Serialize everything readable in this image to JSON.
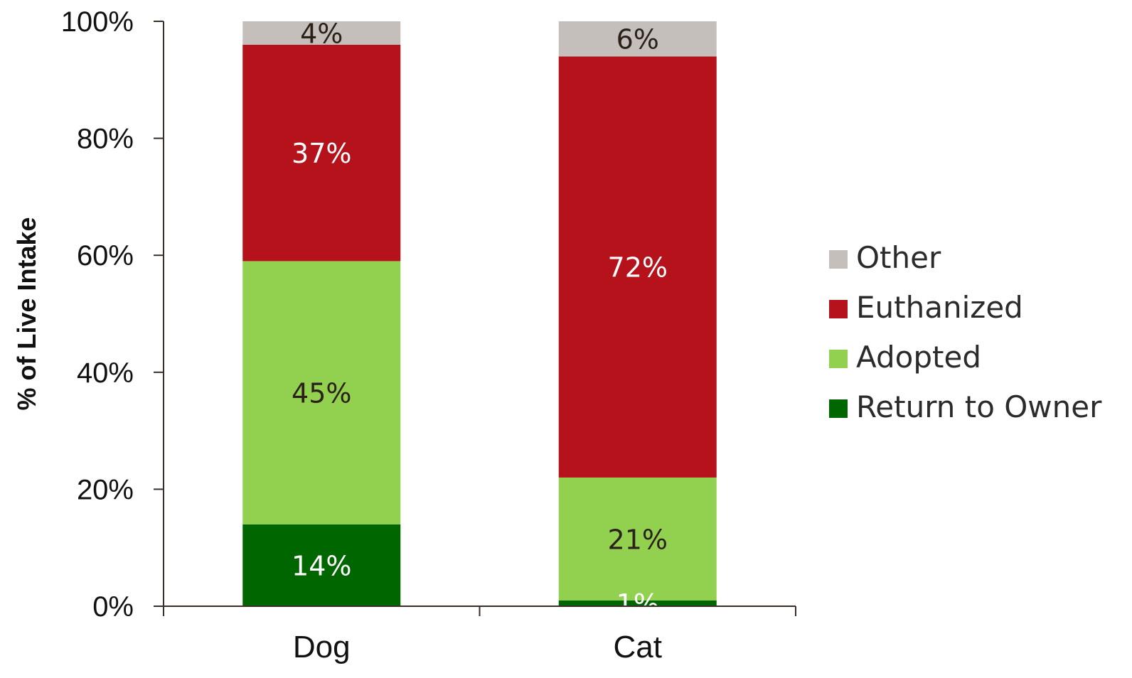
{
  "chart_data": {
    "type": "bar",
    "stacked": true,
    "categories": [
      "Dog",
      "Cat"
    ],
    "ylabel": "% of Live Intake",
    "xlabel": "",
    "ylim": [
      0,
      100
    ],
    "y_ticks": [
      "0%",
      "20%",
      "40%",
      "60%",
      "80%",
      "100%"
    ],
    "y_tick_values": [
      0,
      20,
      40,
      60,
      80,
      100
    ],
    "grid": false,
    "legend_position": "right",
    "series": [
      {
        "name": "Return to Owner",
        "values": [
          14,
          1
        ],
        "labels": [
          "14%",
          "1%"
        ],
        "color": "#006600",
        "label_color": "#ffffff"
      },
      {
        "name": "Adopted",
        "values": [
          45,
          21
        ],
        "labels": [
          "45%",
          "21%"
        ],
        "color": "#92d050",
        "label_color": "#2b2118"
      },
      {
        "name": "Euthanized",
        "values": [
          37,
          72
        ],
        "labels": [
          "37%",
          "72%"
        ],
        "color": "#b5121b",
        "label_color": "#ffffff"
      },
      {
        "name": "Other",
        "values": [
          4,
          6
        ],
        "labels": [
          "4%",
          "6%"
        ],
        "color": "#c4bfbb",
        "label_color": "#2b2118"
      }
    ],
    "colors": {
      "axis": "#3b2e26"
    }
  }
}
